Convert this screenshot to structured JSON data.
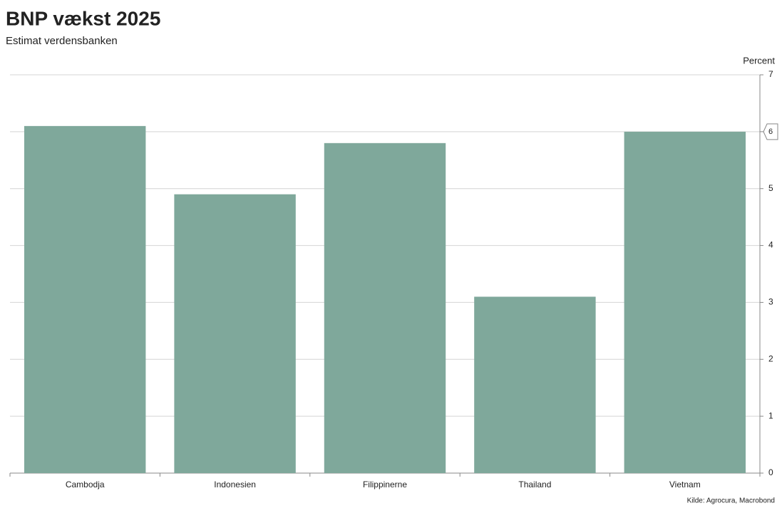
{
  "chart_data": {
    "type": "bar",
    "title": "BNP vækst 2025",
    "subtitle": "Estimat verdensbanken",
    "y_axis_label": "Percent",
    "source": "Kilde: Agrocura, Macrobond",
    "categories": [
      "Cambodja",
      "Indonesien",
      "Filippinerne",
      "Thailand",
      "Vietnam"
    ],
    "values": [
      6.1,
      4.9,
      5.8,
      3.1,
      6.0
    ],
    "color": "#7fa89b",
    "ylim": [
      0,
      7
    ],
    "yticks": [
      0,
      1,
      2,
      3,
      4,
      5,
      6,
      7
    ],
    "grid": true
  }
}
